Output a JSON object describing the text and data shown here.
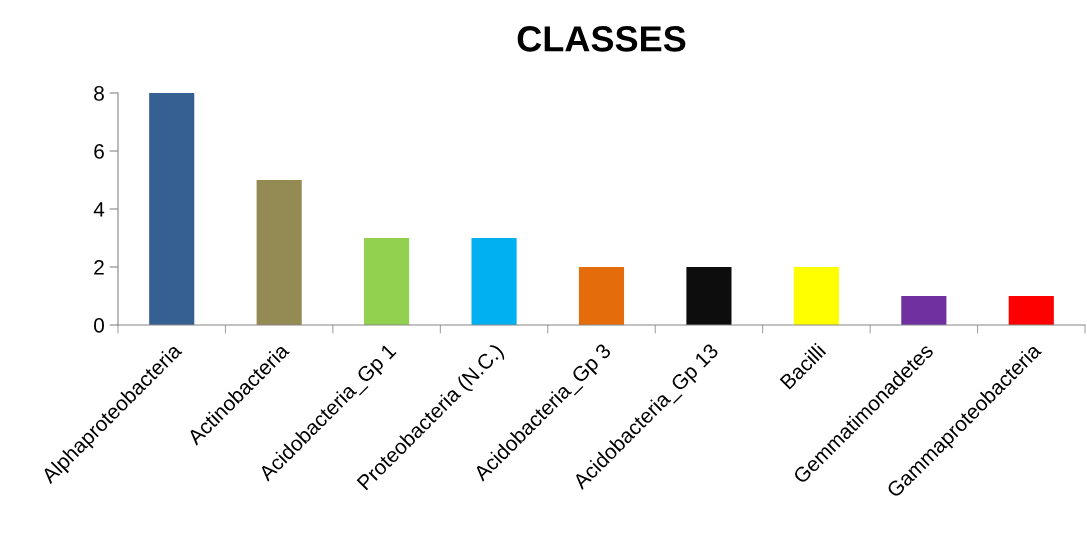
{
  "chart_data": {
    "type": "bar",
    "title": "CLASSES",
    "categories": [
      "Alphaproteobacteria",
      "Actinobacteria",
      "Acidobacteria_Gp 1",
      "Proteobacteria (N.C.)",
      "Acidobacteria_Gp 3",
      "Acidobacteria_Gp 13",
      "Bacilli",
      "Gemmatimonadetes",
      "Gammaproteobacteria"
    ],
    "values": [
      8,
      5,
      3,
      3,
      2,
      2,
      2,
      1,
      1
    ],
    "colors": [
      "#376092",
      "#948a54",
      "#92d050",
      "#00b0f0",
      "#e46c0a",
      "#0d0d0d",
      "#ffff00",
      "#7030a0",
      "#ff0000"
    ],
    "ylim": [
      0,
      8
    ],
    "yticks": [
      0,
      2,
      4,
      6,
      8
    ],
    "grid": false,
    "legend": false
  }
}
